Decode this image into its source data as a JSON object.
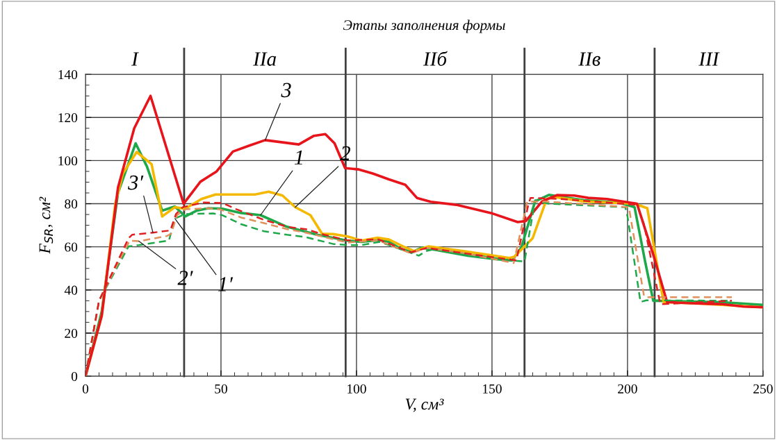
{
  "chart_data": {
    "type": "line",
    "title": "Этапы заполнения формы",
    "xlabel": "V, см³",
    "ylabel": "F$_{SR}$, см²",
    "xlim": [
      0,
      250
    ],
    "xticks": [
      0,
      50,
      100,
      150,
      200,
      250
    ],
    "ylim": [
      0,
      140
    ],
    "yticks": [
      0,
      20,
      40,
      60,
      80,
      100,
      120,
      140
    ],
    "grid": true,
    "line_style": "solid",
    "marker": "none",
    "series": [
      {
        "color": "#1fa84a",
        "x": [
          0,
          6,
          12,
          18.5,
          22.7,
          28.3,
          33,
          36.8,
          41.1,
          45.4,
          50.5,
          57.4,
          64.6,
          74.4,
          85.5,
          96.7,
          101.8,
          108.6,
          112,
          116.3,
          120.6,
          124,
          129.1,
          141.1,
          151.4,
          157.4,
          160.8,
          165.9,
          171,
          183.8,
          196.7,
          202.6,
          206.5,
          209.5,
          218,
          235,
          249.7
        ],
        "values": [
          0,
          30,
          85,
          108,
          97.2,
          76.8,
          78.7,
          74.1,
          76.8,
          77.9,
          77.7,
          75.7,
          74.7,
          69.3,
          65.6,
          62.9,
          62.3,
          63.1,
          62.3,
          59.1,
          57.5,
          59.6,
          58.6,
          55.9,
          54.3,
          53.7,
          59.6,
          81.1,
          84.1,
          81.6,
          80.6,
          78.4,
          53.2,
          35,
          34.8,
          34.3,
          33.1
        ]
      },
      {
        "color": "#f5b800",
        "x": [
          0,
          6,
          11,
          13.8,
          18.9,
          24.4,
          28.3,
          33,
          36.8,
          42.8,
          48,
          62.5,
          67.6,
          72.7,
          77.4,
          83,
          87.3,
          91.5,
          96.7,
          101.8,
          107.8,
          112,
          117.2,
          121.4,
          126.6,
          139.4,
          156.5,
          158.2,
          162.5,
          165,
          170.2,
          172.7,
          183.8,
          202.6,
          207.3,
          213.3,
          226.6,
          249.7
        ],
        "values": [
          0,
          28,
          80,
          94,
          104,
          98.3,
          74.1,
          78.4,
          77.7,
          82.2,
          84.3,
          84.3,
          85.6,
          83.8,
          78.4,
          74.7,
          66.1,
          65.9,
          64.8,
          62.9,
          64.2,
          63.4,
          60.2,
          58,
          60.2,
          58,
          54.8,
          55.4,
          60.8,
          64,
          82.2,
          83.2,
          81.1,
          80,
          77.9,
          34.4,
          33.7,
          32
        ]
      },
      {
        "color": "#e8141c",
        "x": [
          0,
          6,
          12,
          18,
          24,
          36.2,
          42.4,
          48.4,
          54.4,
          60.3,
          66.3,
          78.7,
          84.3,
          88.5,
          91.9,
          95.8,
          100.9,
          106,
          112,
          118,
          122.3,
          127.4,
          136.8,
          149.6,
          159.5,
          162.5,
          168.5,
          174,
          180.4,
          185.5,
          192.4,
          203.5,
          209.5,
          214.6,
          222.3,
          235,
          242.8,
          249.7
        ],
        "values": [
          0,
          28,
          87.5,
          115,
          130,
          80,
          90.2,
          95,
          104.2,
          106.9,
          109.5,
          107.5,
          111.5,
          112.3,
          108,
          96.5,
          95.9,
          94,
          91.3,
          88.8,
          82.7,
          80.9,
          79.5,
          75.7,
          71.5,
          72,
          81.1,
          84,
          83.8,
          82.7,
          82.2,
          80,
          56.4,
          34.4,
          33.9,
          33.4,
          32.3,
          32
        ]
      },
      {
        "color": "#1fa84a",
        "line_style": "dashed",
        "x": [
          0,
          5,
          15.9,
          19.7,
          30.8,
          33,
          36.8,
          47.1,
          50.5,
          57.4,
          65.9,
          74.4,
          81.3,
          91.5,
          96.7,
          101.8,
          108.6,
          123,
          125.6,
          129,
          156.5,
          162,
          165.9,
          171,
          199.2,
          200,
          204.8,
          206.9,
          237.7
        ],
        "values": [
          0,
          35,
          60.2,
          60.8,
          62.9,
          73.1,
          75.2,
          75.5,
          74.7,
          70.5,
          67.2,
          65.6,
          64.5,
          61.3,
          60.8,
          60.8,
          62.3,
          55.9,
          58,
          59,
          53.7,
          53.2,
          81.6,
          80,
          78.4,
          74.1,
          34.4,
          35.2,
          35
        ]
      },
      {
        "color": "#e0905a",
        "line_style": "dashed",
        "x": [
          0,
          5,
          16.3,
          19.7,
          30,
          31.6,
          33.8,
          36.8,
          45.4,
          49.6,
          57.4,
          65.9,
          74.4,
          81.3,
          96.7,
          108,
          120,
          126,
          140,
          158,
          163,
          170,
          200.5,
          206.1,
          207.3,
          238.5
        ],
        "values": [
          0,
          35,
          62.9,
          62.6,
          65,
          66.1,
          74.7,
          77.4,
          77.9,
          77.4,
          73.6,
          71,
          68.2,
          66.6,
          62,
          63,
          57,
          59.5,
          57,
          52.5,
          81,
          81,
          78.4,
          37.1,
          36.6,
          36.6
        ]
      },
      {
        "color": "#e02020",
        "line_style": "dashed",
        "x": [
          0,
          5,
          15.9,
          17.2,
          24.9,
          31.3,
          33.4,
          35.9,
          43.6,
          50.5,
          55.6,
          65.9,
          74.4,
          81.3,
          88.1,
          96.7,
          108,
          120,
          126,
          140,
          159,
          163.3,
          164.2,
          175.5,
          203.5,
          206.1,
          212.1,
          238.5
        ],
        "values": [
          0,
          35,
          64,
          65.6,
          66.6,
          67.6,
          75.2,
          78.4,
          80.6,
          80.3,
          77.5,
          72.5,
          69.3,
          68.2,
          65.6,
          63,
          63.5,
          57.5,
          59.5,
          57,
          53.7,
          79,
          82.7,
          82.2,
          79.5,
          70.4,
          33.4,
          35
        ]
      }
    ],
    "ref_lines": [
      {
        "axis": "x",
        "value": 36.4,
        "color": "#404040"
      },
      {
        "axis": "x",
        "value": 96,
        "color": "#404040"
      },
      {
        "axis": "x",
        "value": 162,
        "color": "#404040"
      },
      {
        "axis": "x",
        "value": 210,
        "color": "#404040"
      }
    ],
    "annotations": [
      "I",
      "IIа",
      "IIб",
      "IIв",
      "III",
      {
        "text": "3",
        "x": 66.3,
        "y": 109.5
      },
      {
        "text": "1",
        "x": 64.6,
        "y": 74.7
      },
      {
        "text": "2",
        "x": 77.4,
        "y": 78.4
      },
      {
        "text": "3′",
        "x": 24.9,
        "y": 66.6
      },
      {
        "text": "2′",
        "x": 19.7,
        "y": 62.6
      },
      {
        "text": "1′",
        "x": 33,
        "y": 73.1
      }
    ]
  }
}
